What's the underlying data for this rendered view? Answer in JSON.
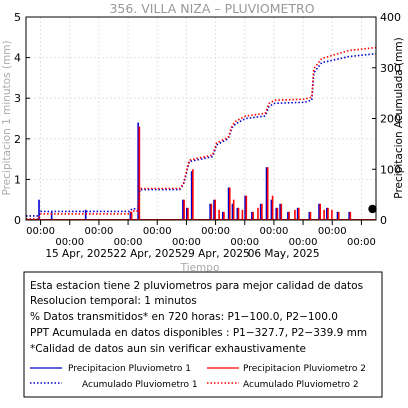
{
  "chart_data": {
    "type": "line",
    "title": "356. VILLA NIZA – PLUVIOMETRO",
    "xlabel": "Tiempo",
    "ylabel_left": "Precipitacion 1 minutos (mm)",
    "ylabel_right": "Precipitacion Acumulada (mm)",
    "ylim_left": [
      0,
      5
    ],
    "ylim_right": [
      0,
      400
    ],
    "xlim_days": [
      0,
      36
    ],
    "left_ticks": [
      "0",
      "1",
      "2",
      "3",
      "4",
      "5"
    ],
    "right_ticks": [
      "0",
      "100",
      "200",
      "300",
      "400"
    ],
    "time_ticks": [
      "00:00",
      "00:00",
      "00:00",
      "00:00",
      "00:00",
      "00:00",
      "00:00",
      "00:00",
      "00:00",
      "00:00",
      "00:00",
      "00:00"
    ],
    "date_ticks": [
      "15 Apr, 2025",
      "22 Apr, 2025",
      "29 Apr, 2025",
      "06 May, 2025"
    ],
    "grid": true,
    "series": [
      {
        "name": "Precipitacion Pluviometro 1",
        "color": "#0000cc",
        "style": "solid",
        "x": [
          1.4,
          2.7,
          6.2,
          10.8,
          11.6,
          16.2,
          16.6,
          17.1,
          19.0,
          19.4,
          20.3,
          20.9,
          21.3,
          21.8,
          22.6,
          23.3,
          24.2,
          24.8,
          25.3,
          25.8,
          26.2,
          27.0,
          28.0,
          29.2,
          30.2,
          31.0,
          32.1,
          33.3
        ],
        "y": [
          0.5,
          0.2,
          0.25,
          0.2,
          2.4,
          0.5,
          0.3,
          1.2,
          0.4,
          0.5,
          0.2,
          0.8,
          0.4,
          0.3,
          0.6,
          0.2,
          0.4,
          1.3,
          0.5,
          0.3,
          0.4,
          0.2,
          0.3,
          0.2,
          0.4,
          0.3,
          0.2,
          0.2
        ]
      },
      {
        "name": "Precipitacion Pluviometro 2",
        "color": "#ff0000",
        "style": "solid",
        "x": [
          10.8,
          11.6,
          16.2,
          16.6,
          17.1,
          19.0,
          19.4,
          19.8,
          20.3,
          20.9,
          21.3,
          21.8,
          22.2,
          22.6,
          23.3,
          23.8,
          24.2,
          24.8,
          25.3,
          25.8,
          26.2,
          27.0,
          27.6,
          28.0,
          29.2,
          30.2,
          30.6,
          31.0,
          31.4,
          32.1,
          33.3
        ],
        "y": [
          0.2,
          2.3,
          0.5,
          0.3,
          1.25,
          0.4,
          0.5,
          0.25,
          0.2,
          0.8,
          0.5,
          0.3,
          0.25,
          0.6,
          0.2,
          0.3,
          0.4,
          1.3,
          0.6,
          0.3,
          0.4,
          0.2,
          0.25,
          0.3,
          0.2,
          0.4,
          0.25,
          0.3,
          0.25,
          0.2,
          0.2
        ]
      },
      {
        "name": "Acumulado Pluviometro 1",
        "color": "#0000cc",
        "style": "dotted",
        "x": [
          0,
          1.3,
          1.5,
          10.7,
          10.9,
          11.5,
          11.7,
          15.8,
          16.2,
          16.8,
          19.2,
          19.6,
          20.8,
          21.2,
          21.6,
          22.6,
          24.6,
          25.0,
          25.6,
          28.6,
          29.4,
          29.6,
          30.0,
          30.4,
          33.2,
          36
        ],
        "y": [
          8,
          8,
          17,
          17,
          22,
          22,
          60,
          60,
          70,
          115,
          125,
          148,
          160,
          182,
          190,
          200,
          205,
          224,
          230,
          232,
          236,
          290,
          300,
          310,
          322,
          327.7
        ]
      },
      {
        "name": "Acumulado Pluviometro 2",
        "color": "#ff0000",
        "style": "dotted",
        "x": [
          0,
          1.3,
          1.5,
          10.7,
          10.9,
          11.5,
          11.7,
          15.8,
          16.2,
          16.8,
          19.2,
          19.6,
          20.8,
          21.2,
          21.6,
          22.6,
          24.6,
          25.0,
          25.6,
          28.6,
          29.4,
          29.6,
          30.0,
          30.4,
          33.2,
          36
        ],
        "y": [
          2,
          2,
          12,
          12,
          18,
          18,
          62,
          62,
          72,
          118,
          128,
          152,
          163,
          186,
          195,
          205,
          210,
          230,
          236,
          238,
          242,
          298,
          308,
          318,
          334,
          339.9
        ]
      }
    ]
  },
  "info": {
    "lines": [
      "Esta estacion tiene 2 pluviometros para mejor calidad de datos",
      "Resolucion temporal: 1 minutos",
      "% Datos transmitidos* en 720 horas: P1−100.0, P2−100.0",
      "PPT Acumulada en datos disponibles : P1−327.7, P2−339.9 mm",
      "*Calidad de datos aun sin verificar exhaustivamente"
    ]
  }
}
